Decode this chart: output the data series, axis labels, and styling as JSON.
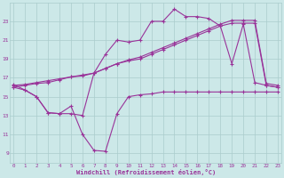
{
  "bg_color": "#cce8e8",
  "line_color": "#993399",
  "grid_color": "#aacccc",
  "xlabel": "Windchill (Refroidissement éolien,°C)",
  "xlabel_color": "#993399",
  "tick_color": "#993399",
  "yticks": [
    9,
    11,
    13,
    15,
    17,
    19,
    21,
    23
  ],
  "xticks": [
    0,
    1,
    2,
    3,
    4,
    5,
    6,
    7,
    8,
    9,
    10,
    11,
    12,
    13,
    14,
    15,
    16,
    17,
    18,
    19,
    20,
    21,
    22,
    23
  ],
  "xlim": [
    -0.3,
    23.3
  ],
  "ylim": [
    8.0,
    25.0
  ],
  "s1_x": [
    0,
    1,
    2,
    3,
    4,
    5,
    6,
    7,
    8,
    9,
    10,
    11,
    12,
    13,
    14,
    15,
    16,
    17,
    18,
    19,
    20,
    21,
    22,
    23
  ],
  "s1_y": [
    16.0,
    15.7,
    15.0,
    13.3,
    13.2,
    14.0,
    11.0,
    9.3,
    9.2,
    13.2,
    15.0,
    15.2,
    15.3,
    15.5,
    15.5,
    15.5,
    15.5,
    15.5,
    15.5,
    15.5,
    15.5,
    15.5,
    15.5,
    15.5
  ],
  "s2_x": [
    0,
    1,
    2,
    3,
    4,
    5,
    6,
    7,
    8,
    9,
    10,
    11,
    12,
    13,
    14,
    15,
    16,
    17,
    18,
    19,
    20,
    21,
    22,
    23
  ],
  "s2_y": [
    16.3,
    15.7,
    15.0,
    13.3,
    13.2,
    13.2,
    13.0,
    17.5,
    19.5,
    21.0,
    20.8,
    21.0,
    23.0,
    23.0,
    24.3,
    23.5,
    23.5,
    23.3,
    22.5,
    18.5,
    22.7,
    16.5,
    16.2,
    16.0
  ],
  "s3_x": [
    0,
    1,
    2,
    3,
    4,
    5,
    6,
    7,
    8,
    9,
    10,
    11,
    12,
    13,
    14,
    15,
    16,
    17,
    18,
    19,
    20,
    21,
    22,
    23
  ],
  "s3_y": [
    16.0,
    16.2,
    16.4,
    16.5,
    16.8,
    17.1,
    17.2,
    17.5,
    18.0,
    18.5,
    18.8,
    19.0,
    19.5,
    20.0,
    20.5,
    21.0,
    21.5,
    22.0,
    22.5,
    22.8,
    22.8,
    22.8,
    16.2,
    16.0
  ],
  "s4_x": [
    0,
    1,
    2,
    3,
    4,
    5,
    6,
    7,
    8,
    9,
    10,
    11,
    12,
    13,
    14,
    15,
    16,
    17,
    18,
    19,
    20,
    21,
    22,
    23
  ],
  "s4_y": [
    16.2,
    16.3,
    16.5,
    16.7,
    16.9,
    17.1,
    17.3,
    17.5,
    18.0,
    18.5,
    18.9,
    19.2,
    19.7,
    20.2,
    20.7,
    21.2,
    21.7,
    22.2,
    22.7,
    23.1,
    23.1,
    23.1,
    16.4,
    16.2
  ]
}
